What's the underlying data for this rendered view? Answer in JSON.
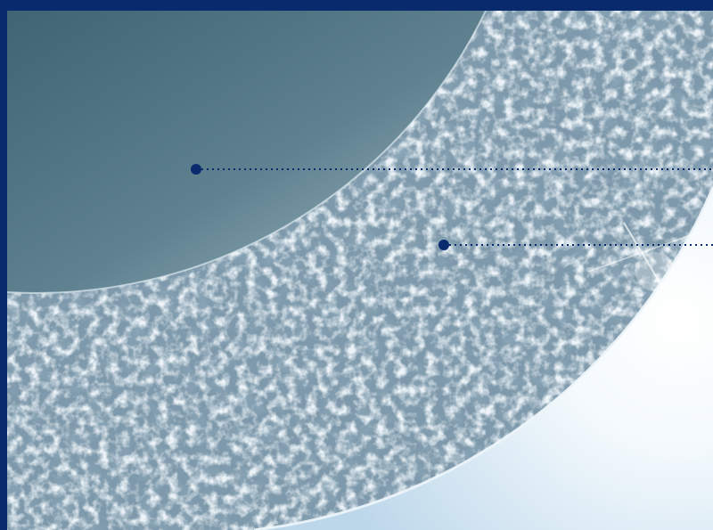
{
  "image": {
    "subject": "membrane-cross-section",
    "colors": {
      "frame": "#0a2a6e",
      "lumen_dark": "#3f6474",
      "lumen_light": "#a9bfc8",
      "porous_base": "#6f8fa3",
      "porous_light": "#d6e6ee",
      "outer_glow": "#f6fbff",
      "outer_blue": "#bcd7ea",
      "callout": "#0a2a6e"
    }
  },
  "callouts": [
    {
      "id": "lumen",
      "marker_icon": "dot-marker-icon",
      "line_style": "dotted"
    },
    {
      "id": "membrane-wall",
      "marker_icon": "dot-marker-icon",
      "line_style": "dotted"
    }
  ]
}
